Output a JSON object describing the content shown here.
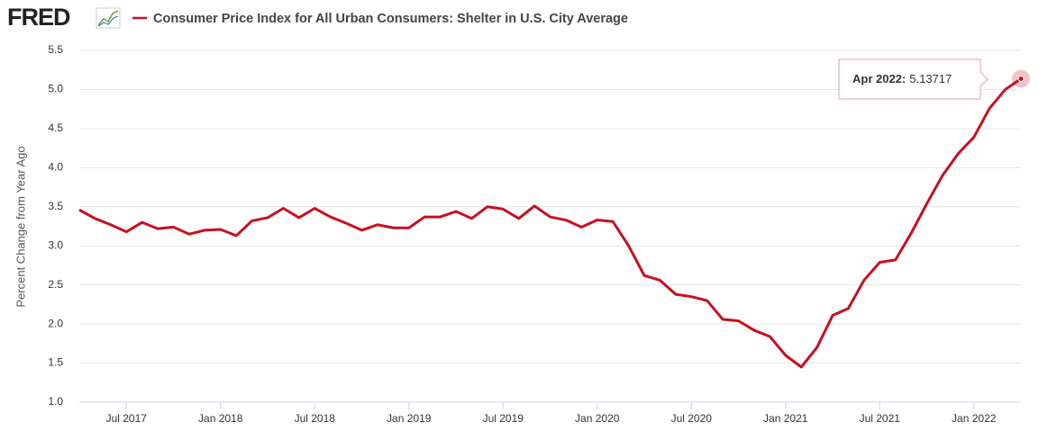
{
  "chart_data": {
    "type": "line",
    "logo": "FRED",
    "title": "Consumer Price Index for All Urban Consumers: Shelter in U.S. City Average",
    "y_label": "Percent Change from Year Ago",
    "x": [
      "2017-04",
      "2017-05",
      "2017-06",
      "2017-07",
      "2017-08",
      "2017-09",
      "2017-10",
      "2017-11",
      "2017-12",
      "2018-01",
      "2018-02",
      "2018-03",
      "2018-04",
      "2018-05",
      "2018-06",
      "2018-07",
      "2018-08",
      "2018-09",
      "2018-10",
      "2018-11",
      "2018-12",
      "2019-01",
      "2019-02",
      "2019-03",
      "2019-04",
      "2019-05",
      "2019-06",
      "2019-07",
      "2019-08",
      "2019-09",
      "2019-10",
      "2019-11",
      "2019-12",
      "2020-01",
      "2020-02",
      "2020-03",
      "2020-04",
      "2020-05",
      "2020-06",
      "2020-07",
      "2020-08",
      "2020-09",
      "2020-10",
      "2020-11",
      "2020-12",
      "2021-01",
      "2021-02",
      "2021-03",
      "2021-04",
      "2021-05",
      "2021-06",
      "2021-07",
      "2021-08",
      "2021-09",
      "2021-10",
      "2021-11",
      "2021-12",
      "2022-01",
      "2022-02",
      "2022-03",
      "2022-04"
    ],
    "series": [
      {
        "name": "Consumer Price Index for All Urban Consumers: Shelter in U.S. City Average",
        "color": "#c7101f",
        "values": [
          3.46,
          3.35,
          3.27,
          3.18,
          3.3,
          3.22,
          3.24,
          3.15,
          3.2,
          3.21,
          3.13,
          3.32,
          3.36,
          3.48,
          3.36,
          3.48,
          3.37,
          3.29,
          3.2,
          3.27,
          3.23,
          3.23,
          3.37,
          3.37,
          3.44,
          3.35,
          3.5,
          3.47,
          3.35,
          3.51,
          3.37,
          3.33,
          3.24,
          3.33,
          3.31,
          3.0,
          2.62,
          2.56,
          2.38,
          2.35,
          2.3,
          2.06,
          2.04,
          1.92,
          1.84,
          1.6,
          1.45,
          1.7,
          2.11,
          2.2,
          2.56,
          2.79,
          2.82,
          3.16,
          3.54,
          3.9,
          4.18,
          4.39,
          4.76,
          5.0,
          5.13717
        ]
      }
    ],
    "xlim": [
      "2017-04",
      "2022-04"
    ],
    "xticks": [
      {
        "value": "2017-07",
        "label": "Jul 2017"
      },
      {
        "value": "2018-01",
        "label": "Jan 2018"
      },
      {
        "value": "2018-07",
        "label": "Jul 2018"
      },
      {
        "value": "2019-01",
        "label": "Jan 2019"
      },
      {
        "value": "2019-07",
        "label": "Jul 2019"
      },
      {
        "value": "2020-01",
        "label": "Jan 2020"
      },
      {
        "value": "2020-07",
        "label": "Jul 2020"
      },
      {
        "value": "2021-01",
        "label": "Jan 2021"
      },
      {
        "value": "2021-07",
        "label": "Jul 2021"
      },
      {
        "value": "2022-01",
        "label": "Jan 2022"
      }
    ],
    "ylim": [
      1,
      5.5
    ],
    "yticks": [
      {
        "value": 1,
        "label": "1.0"
      },
      1.5,
      {
        "value": 2,
        "label": "2.0"
      },
      2.5,
      {
        "value": 3,
        "label": "3.0"
      },
      3.5,
      {
        "value": 4,
        "label": "4.0"
      },
      4.5,
      {
        "value": 5,
        "label": "5.0"
      },
      5.5
    ],
    "grid": true,
    "tooltip": {
      "label": "Apr 2022:",
      "index": 60
    }
  }
}
